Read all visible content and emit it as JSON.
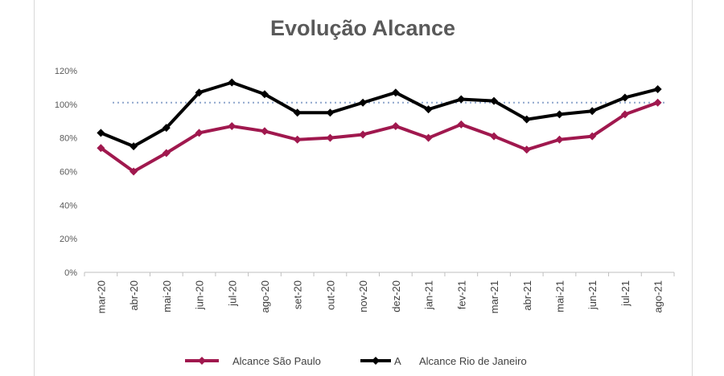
{
  "chart_data": {
    "type": "line",
    "title": "Evolução Alcance",
    "xlabel": "",
    "ylabel": "",
    "categories": [
      "mar-20",
      "abr-20",
      "mai-20",
      "jun-20",
      "jul-20",
      "ago-20",
      "set-20",
      "out-20",
      "nov-20",
      "dez-20",
      "jan-21",
      "fev-21",
      "mar-21",
      "abr-21",
      "mai-21",
      "jun-21",
      "jul-21",
      "ago-21"
    ],
    "y_ticks": [
      "0%",
      "20%",
      "40%",
      "60%",
      "80%",
      "100%",
      "120%"
    ],
    "ylim": [
      0,
      120
    ],
    "reference_line": {
      "value": 101,
      "style": "dotted",
      "color": "#8ea6cc"
    },
    "grid": false,
    "legend_position": "bottom",
    "series": [
      {
        "name": "Alcance São Paulo",
        "color": "#a0184e",
        "values": [
          74,
          60,
          71,
          83,
          87,
          84,
          79,
          80,
          82,
          87,
          80,
          88,
          81,
          73,
          79,
          81,
          94,
          101
        ]
      },
      {
        "name": "Alcance Rio de Janeiro",
        "color": "#000000",
        "values": [
          83,
          75,
          86,
          107,
          113,
          106,
          95,
          95,
          101,
          107,
          97,
          103,
          102,
          91,
          94,
          96,
          104,
          109
        ]
      }
    ],
    "legend_extra_label": "A"
  }
}
